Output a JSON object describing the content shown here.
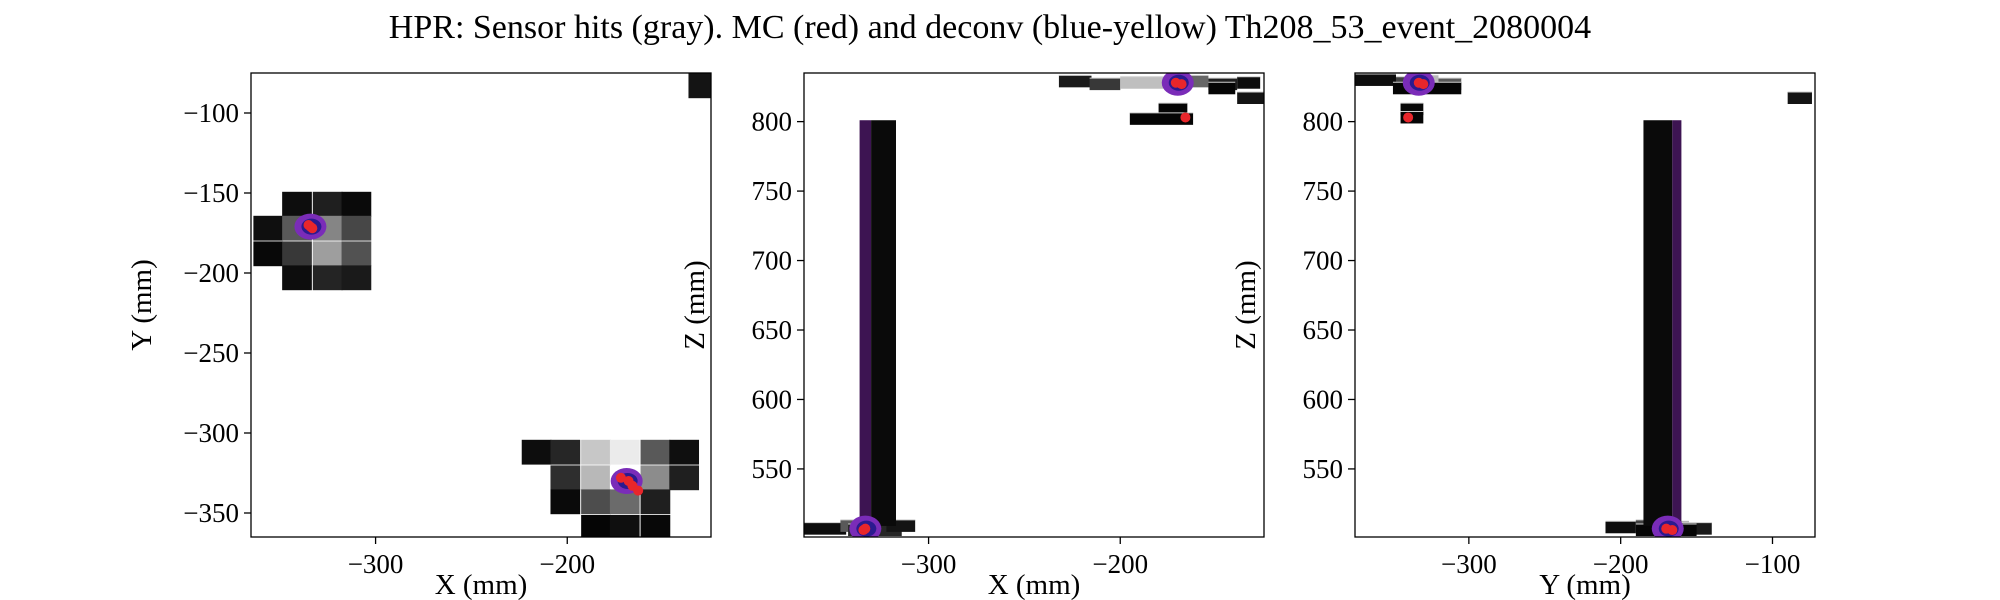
{
  "title": "HPR: Sensor hits (gray). MC (red) and deconv (blue-yellow) Th208_53_event_2080004",
  "colors": {
    "mc": "#e8262b",
    "deconv_edge": "#7a2cb8",
    "deconv_core": "#2b1a8f",
    "strip": "#3d1452"
  },
  "chart_data": [
    {
      "type": "heatmap",
      "id": "xy",
      "xlabel": "X (mm)",
      "ylabel": "Y (mm)",
      "xlim": [
        -365,
        -125
      ],
      "ylim": [
        -365,
        -75
      ],
      "xticks": [
        -300,
        -200
      ],
      "yticks": [
        -350,
        -300,
        -250,
        -200,
        -150,
        -100
      ],
      "tick_labels_x": [
        "−300",
        "−200"
      ],
      "tick_labels_y": [
        "−350",
        "−300",
        "−250",
        "−200",
        "−150",
        "−100"
      ],
      "sensor_pitch": 15.5,
      "sensor_hits": [
        {
          "x": -129,
          "y": -83,
          "g": 0.08
        },
        {
          "x": -341,
          "y": -157,
          "g": 0.05
        },
        {
          "x": -325,
          "y": -157,
          "g": 0.12
        },
        {
          "x": -310,
          "y": -157,
          "g": 0.04
        },
        {
          "x": -356,
          "y": -172,
          "g": 0.06
        },
        {
          "x": -341,
          "y": -172,
          "g": 0.35
        },
        {
          "x": -325,
          "y": -172,
          "g": 0.52
        },
        {
          "x": -310,
          "y": -172,
          "g": 0.28
        },
        {
          "x": -356,
          "y": -188,
          "g": 0.03
        },
        {
          "x": -341,
          "y": -188,
          "g": 0.22
        },
        {
          "x": -325,
          "y": -188,
          "g": 0.62
        },
        {
          "x": -310,
          "y": -188,
          "g": 0.32
        },
        {
          "x": -341,
          "y": -203,
          "g": 0.05
        },
        {
          "x": -325,
          "y": -203,
          "g": 0.14
        },
        {
          "x": -310,
          "y": -203,
          "g": 0.1
        },
        {
          "x": -216,
          "y": -312,
          "g": 0.05
        },
        {
          "x": -201,
          "y": -312,
          "g": 0.15
        },
        {
          "x": -185,
          "y": -312,
          "g": 0.78
        },
        {
          "x": -170,
          "y": -312,
          "g": 0.92
        },
        {
          "x": -154,
          "y": -312,
          "g": 0.35
        },
        {
          "x": -139,
          "y": -312,
          "g": 0.06
        },
        {
          "x": -201,
          "y": -328,
          "g": 0.18
        },
        {
          "x": -185,
          "y": -328,
          "g": 0.72
        },
        {
          "x": -170,
          "y": -328,
          "g": 1.0
        },
        {
          "x": -154,
          "y": -328,
          "g": 0.55
        },
        {
          "x": -139,
          "y": -328,
          "g": 0.12
        },
        {
          "x": -201,
          "y": -343,
          "g": 0.04
        },
        {
          "x": -185,
          "y": -343,
          "g": 0.3
        },
        {
          "x": -170,
          "y": -343,
          "g": 0.42
        },
        {
          "x": -154,
          "y": -343,
          "g": 0.12
        },
        {
          "x": -185,
          "y": -359,
          "g": 0.02
        },
        {
          "x": -170,
          "y": -359,
          "g": 0.06
        },
        {
          "x": -154,
          "y": -359,
          "g": 0.03
        }
      ],
      "deconv_blobs": [
        {
          "x": -334,
          "y": -171
        },
        {
          "x": -169,
          "y": -330
        }
      ],
      "mc_points": [
        {
          "x": -334,
          "y": -171
        },
        {
          "x": -333,
          "y": -172
        },
        {
          "x": -335,
          "y": -170
        },
        {
          "x": -172,
          "y": -328
        },
        {
          "x": -168,
          "y": -330
        },
        {
          "x": -166,
          "y": -333
        },
        {
          "x": -163,
          "y": -336
        }
      ]
    },
    {
      "type": "heatmap",
      "id": "xz",
      "xlabel": "X (mm)",
      "ylabel": "Z (mm)",
      "xlim": [
        -365,
        -125
      ],
      "ylim": [
        501,
        835
      ],
      "xticks": [
        -300,
        -200
      ],
      "yticks": [
        550,
        600,
        650,
        700,
        750,
        800
      ],
      "tick_labels_x": [
        "−300",
        "−200"
      ],
      "tick_labels_y": [
        "550",
        "600",
        "650",
        "700",
        "750",
        "800"
      ],
      "hit_bars": [
        {
          "x0": -365,
          "x1": -343,
          "z": 507,
          "g": 0.05
        },
        {
          "x0": -346,
          "x1": -322,
          "z": 509,
          "g": 0.35
        },
        {
          "x0": -342,
          "x1": -314,
          "z": 506,
          "g": 0.15
        },
        {
          "x0": -322,
          "x1": -307,
          "z": 509,
          "g": 0.08
        },
        {
          "x0": -232,
          "x1": -215,
          "z": 829,
          "g": 0.1
        },
        {
          "x0": -216,
          "x1": -200,
          "z": 827,
          "g": 0.22
        },
        {
          "x0": -200,
          "x1": -170,
          "z": 828,
          "g": 0.75
        },
        {
          "x0": -170,
          "x1": -154,
          "z": 829,
          "g": 0.4
        },
        {
          "x0": -154,
          "x1": -139,
          "z": 827,
          "g": 0.12
        },
        {
          "x0": -154,
          "x1": -140,
          "z": 824,
          "g": 0.02
        },
        {
          "x0": -139,
          "x1": -127,
          "z": 828,
          "g": 0.05
        },
        {
          "x0": -180,
          "x1": -165,
          "z": 809,
          "g": 0.02
        },
        {
          "x0": -195,
          "x1": -162,
          "z": 802,
          "g": 0.02
        },
        {
          "x0": -139,
          "x1": -125,
          "z": 817,
          "g": 0.08
        }
      ],
      "columns": [
        {
          "x0": -336,
          "x1": -330,
          "z0": 509,
          "z1": 801,
          "kind": "deconv"
        },
        {
          "x0": -330,
          "x1": -317,
          "z0": 509,
          "z1": 801,
          "kind": "hits"
        }
      ],
      "deconv_blobs": [
        {
          "x": -333,
          "z": 507
        },
        {
          "x": -170,
          "z": 828
        }
      ],
      "mc_points": [
        {
          "x": -334,
          "z": 506
        },
        {
          "x": -333,
          "z": 507
        },
        {
          "x": -171,
          "z": 828
        },
        {
          "x": -168,
          "z": 827
        },
        {
          "x": -166,
          "z": 803
        }
      ]
    },
    {
      "type": "heatmap",
      "id": "yz",
      "xlabel": "Y (mm)",
      "ylabel": "Z (mm)",
      "xlim": [
        -375,
        -72
      ],
      "ylim": [
        501,
        835
      ],
      "xticks": [
        -300,
        -200,
        -100
      ],
      "yticks": [
        550,
        600,
        650,
        700,
        750,
        800
      ],
      "tick_labels_x": [
        "−300",
        "−200",
        "−100"
      ],
      "tick_labels_y": [
        "550",
        "600",
        "650",
        "700",
        "750",
        "800"
      ],
      "hit_bars": [
        {
          "x0": -375,
          "x1": -348,
          "z": 830,
          "g": 0.05
        },
        {
          "x0": -348,
          "x1": -335,
          "z": 828,
          "g": 0.25
        },
        {
          "x0": -335,
          "x1": -320,
          "z": 829,
          "g": 0.72
        },
        {
          "x0": -320,
          "x1": -305,
          "z": 827,
          "g": 0.35
        },
        {
          "x0": -350,
          "x1": -305,
          "z": 824,
          "g": 0.02
        },
        {
          "x0": -345,
          "x1": -330,
          "z": 809,
          "g": 0.03
        },
        {
          "x0": -345,
          "x1": -330,
          "z": 803,
          "g": 0.02
        },
        {
          "x0": -90,
          "x1": -74,
          "z": 817,
          "g": 0.08
        },
        {
          "x0": -210,
          "x1": -190,
          "z": 508,
          "g": 0.05
        },
        {
          "x0": -190,
          "x1": -170,
          "z": 509,
          "g": 0.25
        },
        {
          "x0": -170,
          "x1": -155,
          "z": 508,
          "g": 0.45
        },
        {
          "x0": -160,
          "x1": -140,
          "z": 507,
          "g": 0.1
        },
        {
          "x0": -190,
          "x1": -150,
          "z": 506,
          "g": 0.02
        }
      ],
      "columns": [
        {
          "x0": -185,
          "x1": -166,
          "z0": 509,
          "z1": 801,
          "kind": "hits"
        },
        {
          "x0": -166,
          "x1": -160,
          "z0": 509,
          "z1": 801,
          "kind": "deconv"
        }
      ],
      "deconv_blobs": [
        {
          "x": -333,
          "z": 828
        },
        {
          "x": -169,
          "z": 507
        }
      ],
      "mc_points": [
        {
          "x": -333,
          "z": 828
        },
        {
          "x": -330,
          "z": 827
        },
        {
          "x": -340,
          "z": 803
        },
        {
          "x": -170,
          "z": 507
        },
        {
          "x": -166,
          "z": 506
        }
      ]
    }
  ]
}
